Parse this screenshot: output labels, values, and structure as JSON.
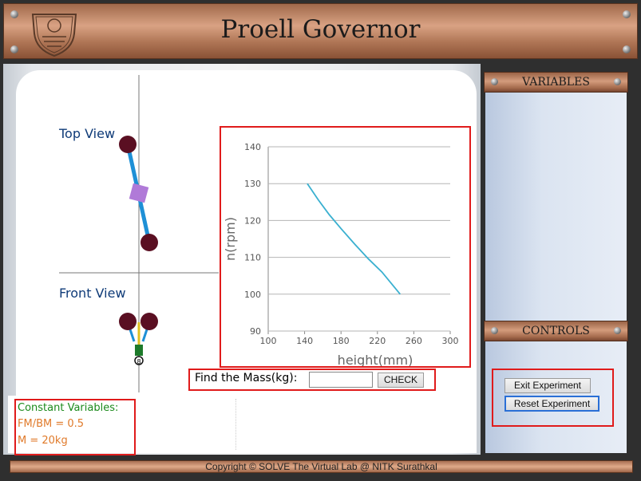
{
  "header": {
    "title": "Proell Governor"
  },
  "simulation": {
    "top_view_label": "Top View",
    "front_view_label": "Front View",
    "sleeve_mark": "8"
  },
  "side_panel": {
    "variables_title": "VARIABLES",
    "controls_title": "CONTROLS",
    "exit_button": "Exit Experiment",
    "reset_button": "Reset Experiment"
  },
  "mass_form": {
    "label": "Find the Mass(kg):",
    "input_value": "",
    "check_button": "CHECK"
  },
  "constants": {
    "title": "Constant Variables:",
    "fm_bm": "FM/BM = 0.5",
    "mass": "M = 20kg"
  },
  "footer": {
    "copyright": "Copyright © SOLVE The Virtual Lab @ NITK Surathkal"
  },
  "chart_data": {
    "type": "line",
    "xlabel": "height(mm)",
    "ylabel": "n(rpm)",
    "xlim": [
      100,
      300
    ],
    "ylim": [
      90,
      140
    ],
    "x_ticks": [
      "100",
      "140",
      "180",
      "220",
      "260",
      "300"
    ],
    "y_ticks": [
      "90",
      "100",
      "110",
      "120",
      "130",
      "140"
    ],
    "grid": "horizontal",
    "series": [
      {
        "color": "#3ab0d0",
        "x": [
          143,
          155,
          167,
          180,
          195,
          210,
          225,
          245
        ],
        "y": [
          130,
          125.6,
          121.6,
          117.8,
          113.6,
          109.6,
          106,
          100
        ]
      }
    ]
  }
}
